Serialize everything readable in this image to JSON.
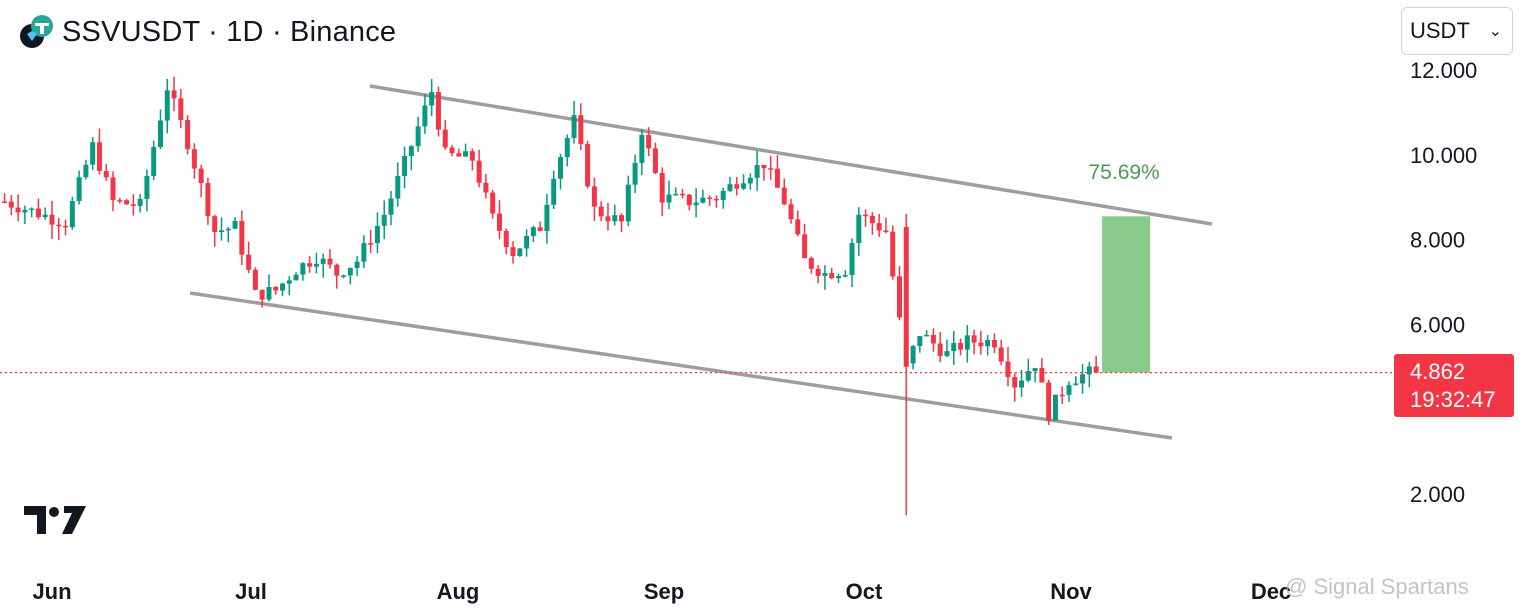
{
  "header": {
    "title": "SSVUSDT · 1D · Binance"
  },
  "currency_select": {
    "value": "USDT"
  },
  "price_tag": {
    "price": "4.862",
    "countdown": "19:32:47"
  },
  "measure_label": "75.69%",
  "watermark": "@ Signal Spartans",
  "colors": {
    "up": "#089981",
    "down": "#f23645",
    "channel": "#9e9e9e",
    "measure": "#81c784"
  },
  "chart_data": {
    "type": "candlestick",
    "title": "SSVUSDT · 1D · Binance",
    "x_ticks": [
      "Jun",
      "Jul",
      "Aug",
      "Sep",
      "Oct",
      "Nov",
      "Dec"
    ],
    "y_ticks": [
      "2.000",
      "6.000",
      "8.000",
      "10.000",
      "12.000"
    ],
    "y_range": [
      1.5,
      12.2
    ],
    "last_price": 4.862,
    "annotations": {
      "upper_channel": {
        "from": [
          1,
          11.65
        ],
        "to": [
          1,
          8.45
        ]
      },
      "lower_channel": {
        "from": [
          1,
          6.7
        ],
        "to": [
          1,
          3.45
        ]
      },
      "measure": {
        "from": 4.862,
        "to": 8.55,
        "label": "75.69%"
      }
    },
    "candles": []
  }
}
